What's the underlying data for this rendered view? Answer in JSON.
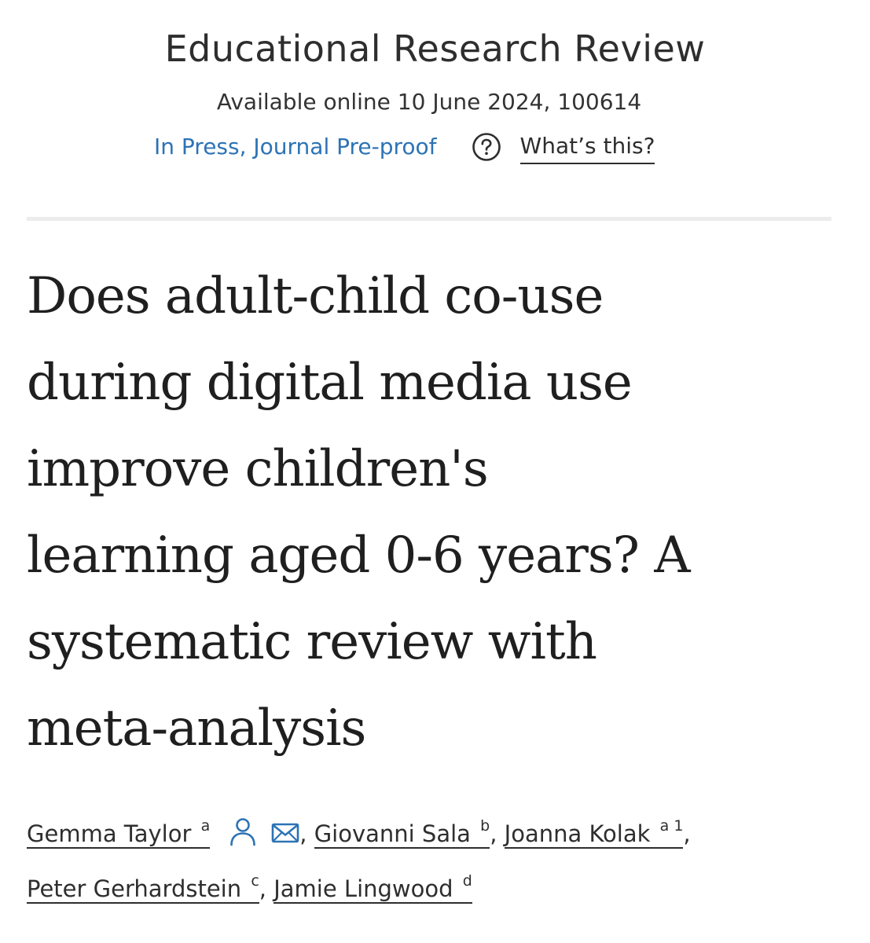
{
  "journal": {
    "title": "Educational Research Review",
    "available": "Available online 10 June 2024, 100614",
    "status": "In Press, Journal Pre-proof",
    "help_link": "What’s this?",
    "help_icon": "question-circle-icon"
  },
  "article": {
    "title_lines": [
      "Does adult-child co-use",
      "during digital media use",
      "improve children's",
      "learning aged 0-6 years? A",
      "systematic review with",
      "meta-analysis"
    ]
  },
  "authors": [
    {
      "name": "Gemma Taylor",
      "affiliation": "a",
      "icons": [
        "person-icon",
        "mail-icon"
      ]
    },
    {
      "name": "Giovanni Sala",
      "affiliation": "b"
    },
    {
      "name": "Joanna Kolak",
      "affiliation": "a 1"
    },
    {
      "name": "Peter Gerhardstein",
      "affiliation": "c"
    },
    {
      "name": "Jamie Lingwood",
      "affiliation": "d"
    }
  ],
  "separators": {
    "comma": ","
  },
  "colors": {
    "link_blue": "#2d73b5",
    "text": "#2e2e2e",
    "divider": "#ececec"
  }
}
